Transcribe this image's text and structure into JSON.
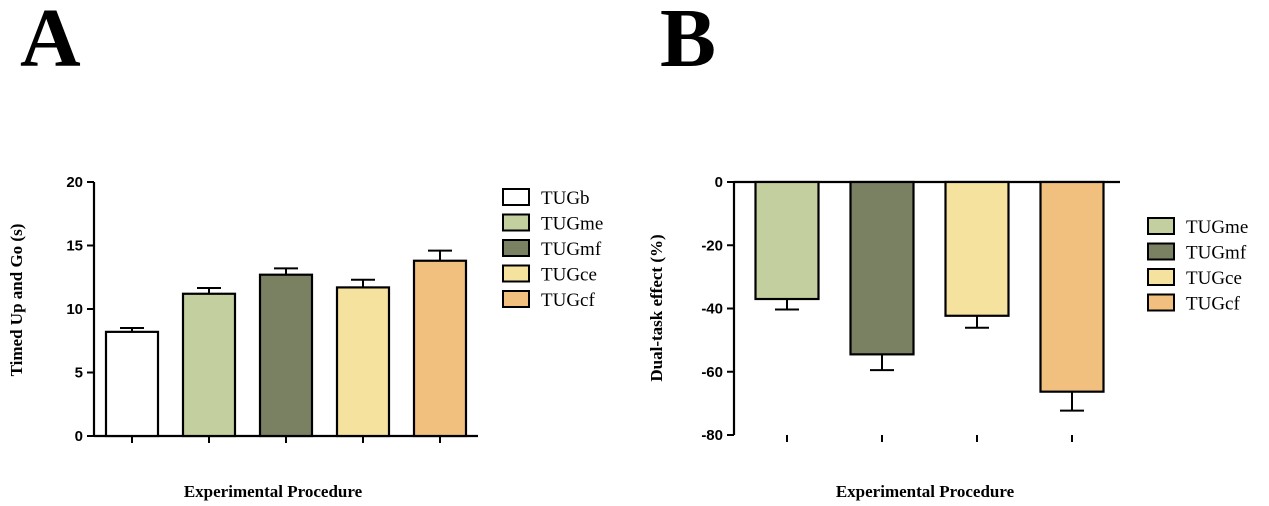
{
  "panels": [
    {
      "letter": "A"
    },
    {
      "letter": "B"
    }
  ],
  "chart_data": [
    {
      "type": "bar",
      "ylabel": "Timed Up and Go (s)",
      "xlabel": "Experimental Procedure",
      "ylim": [
        0,
        20
      ],
      "yticks": [
        "0",
        "5",
        "10",
        "15",
        "20"
      ],
      "categories": [
        "TUGb",
        "TUGme",
        "TUGmf",
        "TUGce",
        "TUGcf"
      ],
      "values": [
        8.2,
        11.2,
        12.7,
        11.7,
        13.8
      ],
      "errors": [
        0.3,
        0.45,
        0.5,
        0.6,
        0.8
      ],
      "colors": [
        "#ffffff",
        "#c3cf9e",
        "#7a8062",
        "#f6e29f",
        "#f1c07e"
      ],
      "legend": [
        "TUGb",
        "TUGme",
        "TUGmf",
        "TUGce",
        "TUGcf"
      ],
      "legend_position": "right",
      "grid": false
    },
    {
      "type": "bar",
      "ylabel": "Dual-task effect (%)",
      "xlabel": "Experimental Procedure",
      "ylim": [
        -80,
        0
      ],
      "yticks": [
        "0",
        "-20",
        "-40",
        "-60",
        "-80"
      ],
      "categories": [
        "TUGme",
        "TUGmf",
        "TUGce",
        "TUGcf"
      ],
      "values": [
        -37,
        -54.5,
        -42.3,
        -66.3
      ],
      "errors": [
        3.3,
        5.0,
        3.8,
        6.0
      ],
      "colors": [
        "#c3cf9e",
        "#7a8062",
        "#f6e29f",
        "#f1c07e"
      ],
      "legend": [
        "TUGme",
        "TUGmf",
        "TUGce",
        "TUGcf"
      ],
      "legend_position": "right",
      "grid": false
    }
  ]
}
